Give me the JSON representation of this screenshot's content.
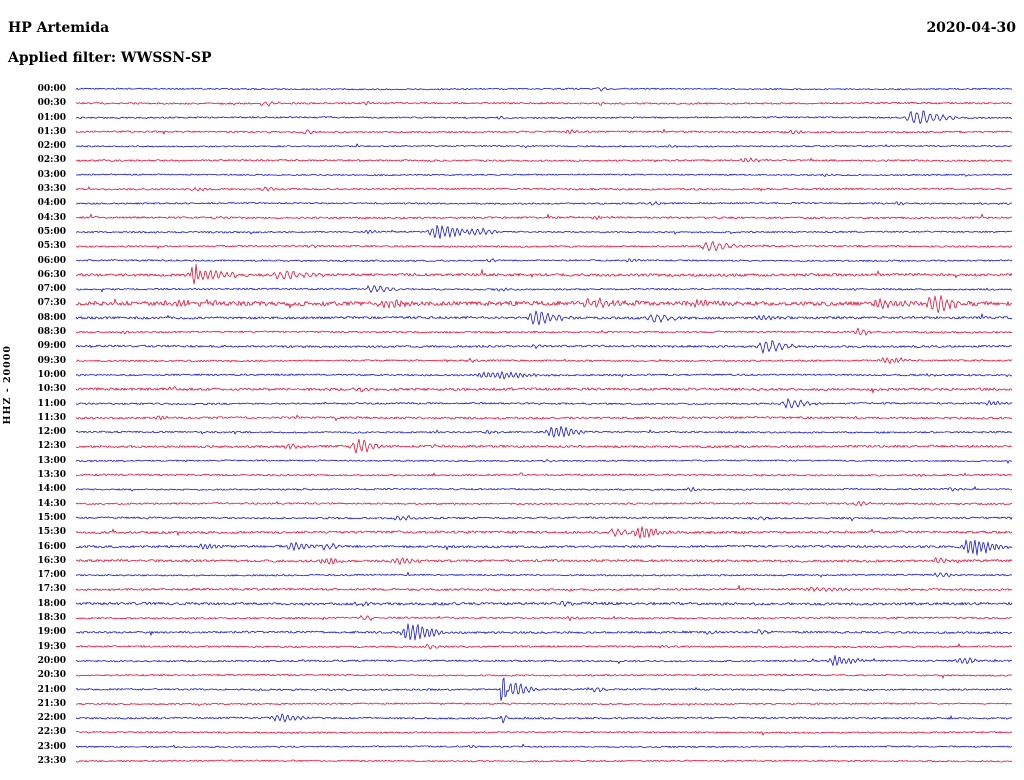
{
  "header": {
    "station": "HP Artemida",
    "date": "2020-04-30",
    "filter": "Applied filter: WWSSN-SP"
  },
  "axis": {
    "channel": "HHZ - 20000"
  },
  "colors": {
    "trace_blue": "#1717D4",
    "trace_red": "#E51237",
    "text": "#000000",
    "background": "#FFFFFF"
  },
  "chart_data": {
    "type": "line",
    "title": "Helicorder day plot - station HP Artemida, channel HHZ, 2020-04-30, WWSSN-SP filter",
    "minutes_per_row": 30,
    "rows": 48,
    "start_label": "00:00",
    "end_label": "23:30",
    "grid": false,
    "legend": false,
    "color_cycle": [
      "#1717D4",
      "#E51237"
    ],
    "row_labels": [
      "00:00",
      "00:30",
      "01:00",
      "01:30",
      "02:00",
      "02:30",
      "03:00",
      "03:30",
      "04:00",
      "04:30",
      "05:00",
      "05:30",
      "06:00",
      "06:30",
      "07:00",
      "07:30",
      "08:00",
      "08:30",
      "09:00",
      "09:30",
      "10:00",
      "10:30",
      "11:00",
      "11:30",
      "12:00",
      "12:30",
      "13:00",
      "13:30",
      "14:00",
      "14:30",
      "15:00",
      "15:30",
      "16:00",
      "16:30",
      "17:00",
      "17:30",
      "18:00",
      "18:30",
      "19:00",
      "19:30",
      "20:00",
      "20:30",
      "21:00",
      "21:30",
      "22:00",
      "22:30",
      "23:00",
      "23:30"
    ],
    "noise_scale": [
      0.8,
      1.0,
      0.9,
      1.0,
      0.8,
      1.0,
      0.8,
      1.0,
      0.9,
      1.1,
      0.9,
      1.0,
      0.9,
      1.6,
      1.0,
      2.6,
      1.4,
      1.0,
      1.2,
      1.0,
      1.0,
      1.5,
      1.0,
      1.2,
      1.0,
      1.3,
      0.8,
      1.0,
      0.9,
      1.0,
      1.0,
      1.4,
      1.3,
      1.4,
      0.9,
      1.2,
      1.5,
      1.0,
      1.2,
      1.0,
      1.0,
      0.9,
      1.0,
      0.9,
      1.0,
      0.9,
      0.8,
      0.9
    ],
    "events": [
      {
        "r": 0,
        "p": 0.56,
        "a": 2,
        "s": 3
      },
      {
        "r": 1,
        "p": 0.2,
        "a": 2.5,
        "s": 4
      },
      {
        "r": 1,
        "p": 0.31,
        "a": 2,
        "s": 3
      },
      {
        "r": 1,
        "p": 0.56,
        "a": 1.5,
        "s": 3
      },
      {
        "r": 2,
        "p": 0.45,
        "a": 1.5,
        "s": 3
      },
      {
        "r": 2,
        "p": 0.895,
        "a": 8,
        "s": 9
      },
      {
        "r": 3,
        "p": 0.245,
        "a": 3,
        "s": 3
      },
      {
        "r": 3,
        "p": 0.525,
        "a": 2,
        "s": 3
      },
      {
        "r": 3,
        "p": 0.765,
        "a": 2.5,
        "s": 3
      },
      {
        "r": 4,
        "p": 0.63,
        "a": 1.5,
        "s": 3
      },
      {
        "r": 5,
        "p": 0.715,
        "a": 2.5,
        "s": 5
      },
      {
        "r": 6,
        "p": 0.8,
        "a": 1.5,
        "s": 3
      },
      {
        "r": 7,
        "p": 0.125,
        "a": 2,
        "s": 4
      },
      {
        "r": 7,
        "p": 0.2,
        "a": 2,
        "s": 4
      },
      {
        "r": 8,
        "p": 0.615,
        "a": 2,
        "s": 3
      },
      {
        "r": 8,
        "p": 0.875,
        "a": 2,
        "s": 3
      },
      {
        "r": 9,
        "p": 0.555,
        "a": 2,
        "s": 5
      },
      {
        "r": 10,
        "p": 0.31,
        "a": 2,
        "s": 3
      },
      {
        "r": 10,
        "p": 0.385,
        "a": 8,
        "s": 8
      },
      {
        "r": 10,
        "p": 0.425,
        "a": 4,
        "s": 6
      },
      {
        "r": 11,
        "p": 0.25,
        "a": 1.5,
        "s": 3
      },
      {
        "r": 11,
        "p": 0.675,
        "a": 6,
        "s": 7
      },
      {
        "r": 12,
        "p": 0.44,
        "a": 2,
        "s": 3
      },
      {
        "r": 12,
        "p": 0.59,
        "a": 2,
        "s": 3
      },
      {
        "r": 13,
        "p": 0.125,
        "a": 22,
        "s": 2.2
      },
      {
        "r": 13,
        "p": 0.13,
        "a": 6,
        "s": 10
      },
      {
        "r": 13,
        "p": 0.215,
        "a": 5,
        "s": 9
      },
      {
        "r": 14,
        "p": 0.315,
        "a": 4,
        "s": 6
      },
      {
        "r": 14,
        "p": 0.45,
        "a": 2,
        "s": 3
      },
      {
        "r": 15,
        "p": 0.1,
        "a": 3,
        "s": 12
      },
      {
        "r": 15,
        "p": 0.33,
        "a": 3,
        "s": 8
      },
      {
        "r": 15,
        "p": 0.55,
        "a": 4,
        "s": 11
      },
      {
        "r": 15,
        "p": 0.66,
        "a": 3,
        "s": 8
      },
      {
        "r": 15,
        "p": 0.86,
        "a": 5,
        "s": 9
      },
      {
        "r": 15,
        "p": 0.915,
        "a": 10,
        "s": 7
      },
      {
        "r": 16,
        "p": 0.49,
        "a": 9,
        "s": 7
      },
      {
        "r": 16,
        "p": 0.615,
        "a": 5,
        "s": 6
      },
      {
        "r": 16,
        "p": 0.73,
        "a": 3,
        "s": 5
      },
      {
        "r": 17,
        "p": 0.05,
        "a": 2,
        "s": 3
      },
      {
        "r": 17,
        "p": 0.835,
        "a": 4,
        "s": 4
      },
      {
        "r": 18,
        "p": 0.49,
        "a": 2,
        "s": 3
      },
      {
        "r": 18,
        "p": 0.735,
        "a": 7,
        "s": 7
      },
      {
        "r": 19,
        "p": 0.42,
        "a": 2,
        "s": 3
      },
      {
        "r": 19,
        "p": 0.865,
        "a": 4,
        "s": 6
      },
      {
        "r": 20,
        "p": 0.44,
        "a": 4,
        "s": 13
      },
      {
        "r": 20,
        "p": 0.91,
        "a": 2,
        "s": 3
      },
      {
        "r": 21,
        "p": 0.1,
        "a": 2,
        "s": 4
      },
      {
        "r": 21,
        "p": 0.3,
        "a": 2,
        "s": 4
      },
      {
        "r": 22,
        "p": 0.76,
        "a": 5,
        "s": 6
      },
      {
        "r": 22,
        "p": 0.975,
        "a": 3,
        "s": 4
      },
      {
        "r": 23,
        "p": 0.085,
        "a": 2.5,
        "s": 4
      },
      {
        "r": 24,
        "p": 0.44,
        "a": 2,
        "s": 3
      },
      {
        "r": 24,
        "p": 0.51,
        "a": 7,
        "s": 7
      },
      {
        "r": 25,
        "p": 0.225,
        "a": 3,
        "s": 4
      },
      {
        "r": 25,
        "p": 0.3,
        "a": 8,
        "s": 6
      },
      {
        "r": 25,
        "p": 0.38,
        "a": 2,
        "s": 3
      },
      {
        "r": 26,
        "p": 0.5,
        "a": 1.5,
        "s": 3
      },
      {
        "r": 27,
        "p": 0.475,
        "a": 2,
        "s": 3
      },
      {
        "r": 27,
        "p": 0.9,
        "a": 1.5,
        "s": 3
      },
      {
        "r": 28,
        "p": 0.655,
        "a": 2.5,
        "s": 3
      },
      {
        "r": 28,
        "p": 0.935,
        "a": 2,
        "s": 3
      },
      {
        "r": 29,
        "p": 0.835,
        "a": 3,
        "s": 4
      },
      {
        "r": 30,
        "p": 0.345,
        "a": 3,
        "s": 5
      },
      {
        "r": 30,
        "p": 0.73,
        "a": 2,
        "s": 3
      },
      {
        "r": 31,
        "p": 0.575,
        "a": 4,
        "s": 5
      },
      {
        "r": 31,
        "p": 0.6,
        "a": 7,
        "s": 7
      },
      {
        "r": 32,
        "p": 0.135,
        "a": 3,
        "s": 5
      },
      {
        "r": 32,
        "p": 0.23,
        "a": 5,
        "s": 6
      },
      {
        "r": 32,
        "p": 0.265,
        "a": 4,
        "s": 4
      },
      {
        "r": 32,
        "p": 0.955,
        "a": 10,
        "s": 8
      },
      {
        "r": 33,
        "p": 0.265,
        "a": 4,
        "s": 5
      },
      {
        "r": 33,
        "p": 0.345,
        "a": 4,
        "s": 6
      },
      {
        "r": 33,
        "p": 0.92,
        "a": 3,
        "s": 4
      },
      {
        "r": 34,
        "p": 0.92,
        "a": 3,
        "s": 4
      },
      {
        "r": 35,
        "p": 0.79,
        "a": 2.5,
        "s": 8
      },
      {
        "r": 36,
        "p": 0.3,
        "a": 2,
        "s": 4
      },
      {
        "r": 36,
        "p": 0.52,
        "a": 2,
        "s": 4
      },
      {
        "r": 37,
        "p": 0.305,
        "a": 2.5,
        "s": 3
      },
      {
        "r": 37,
        "p": 0.525,
        "a": 2.5,
        "s": 3
      },
      {
        "r": 38,
        "p": 0.355,
        "a": 10,
        "s": 8
      },
      {
        "r": 38,
        "p": 0.675,
        "a": 2,
        "s": 3
      },
      {
        "r": 38,
        "p": 0.73,
        "a": 2.5,
        "s": 3
      },
      {
        "r": 39,
        "p": 0.375,
        "a": 2.5,
        "s": 3
      },
      {
        "r": 39,
        "p": 0.625,
        "a": 2,
        "s": 3
      },
      {
        "r": 40,
        "p": 0.81,
        "a": 5,
        "s": 7
      },
      {
        "r": 40,
        "p": 0.945,
        "a": 4,
        "s": 5
      },
      {
        "r": 42,
        "p": 0.455,
        "a": 28,
        "s": 1.5
      },
      {
        "r": 42,
        "p": 0.46,
        "a": 10,
        "s": 6
      },
      {
        "r": 42,
        "p": 0.555,
        "a": 3,
        "s": 3
      },
      {
        "r": 44,
        "p": 0.215,
        "a": 5,
        "s": 6
      },
      {
        "r": 44,
        "p": 0.455,
        "a": 5,
        "s": 1.5
      },
      {
        "r": 46,
        "p": 0.42,
        "a": 1.5,
        "s": 3
      }
    ]
  }
}
